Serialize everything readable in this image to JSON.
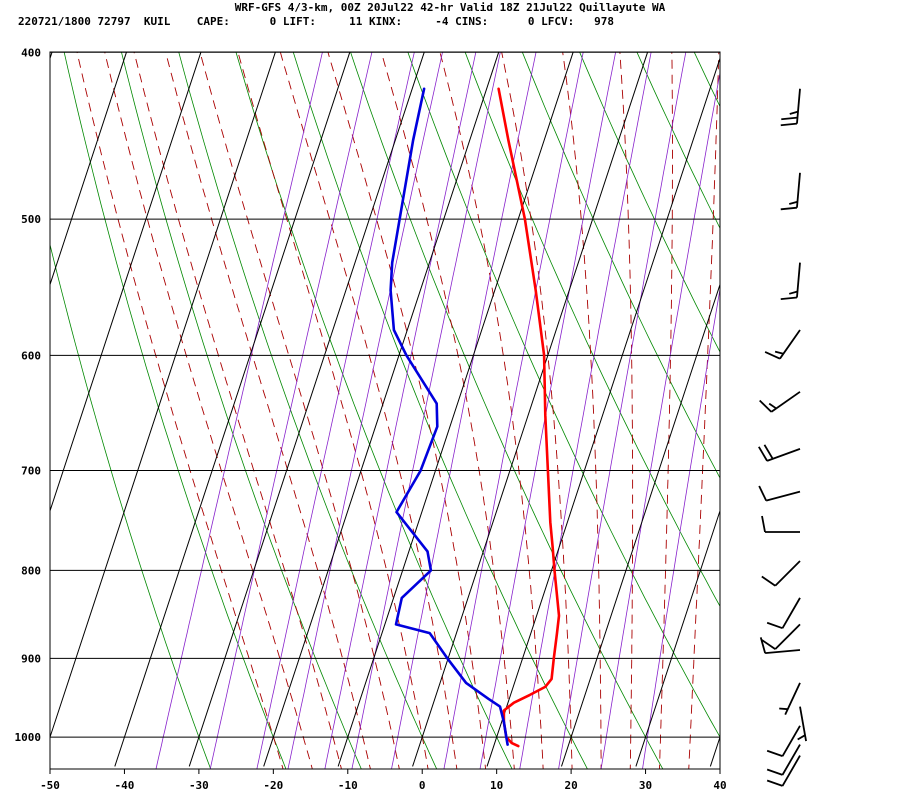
{
  "header": {
    "line1": "WRF-GFS 4/3-km, 00Z 20Jul22 42-hr Valid 18Z 21Jul22 Quillayute WA",
    "line2": "220721/1800 72797  KUIL    CAPE:      0 LIFT:     11 KINX:     -4 CINS:      0 LFCV:   978"
  },
  "chart_data": {
    "type": "skew-t",
    "x_axis": {
      "ticks": [
        -50,
        -40,
        -30,
        -20,
        -10,
        0,
        10,
        20,
        30,
        40
      ],
      "range": [
        -50,
        40
      ]
    },
    "y_axis": {
      "ticks": [
        400,
        500,
        600,
        700,
        800,
        900,
        1000
      ],
      "scale": "log",
      "range": [
        400,
        1040
      ]
    },
    "series": [
      {
        "role": "temperature",
        "color": "#ff0000",
        "points": [
          [
            1012,
            13.3
          ],
          [
            1008,
            12.3
          ],
          [
            1000,
            11.3
          ],
          [
            980,
            10.3
          ],
          [
            965,
            9.8
          ],
          [
            955,
            10.8
          ],
          [
            945,
            12.6
          ],
          [
            935,
            14.3
          ],
          [
            925,
            14.8
          ],
          [
            900,
            14.2
          ],
          [
            870,
            13.5
          ],
          [
            850,
            13.0
          ],
          [
            800,
            10.4
          ],
          [
            775,
            9.1
          ],
          [
            750,
            7.7
          ],
          [
            700,
            5.1
          ],
          [
            650,
            2.3
          ],
          [
            600,
            -0.5
          ],
          [
            550,
            -4.5
          ],
          [
            500,
            -9.1
          ],
          [
            450,
            -14.8
          ],
          [
            420,
            -18.4
          ]
        ]
      },
      {
        "role": "dewpoint",
        "color": "#0000dd",
        "points": [
          [
            1010,
            11.8
          ],
          [
            1000,
            11.3
          ],
          [
            980,
            10.3
          ],
          [
            960,
            9.1
          ],
          [
            950,
            7.2
          ],
          [
            930,
            3.5
          ],
          [
            900,
            -0.1
          ],
          [
            870,
            -3.6
          ],
          [
            860,
            -8.5
          ],
          [
            830,
            -8.9
          ],
          [
            800,
            -6.2
          ],
          [
            780,
            -7.5
          ],
          [
            740,
            -13.4
          ],
          [
            700,
            -12.0
          ],
          [
            660,
            -11.7
          ],
          [
            640,
            -12.8
          ],
          [
            600,
            -19.0
          ],
          [
            580,
            -21.8
          ],
          [
            550,
            -24.0
          ],
          [
            530,
            -25.0
          ],
          [
            450,
            -27.6
          ],
          [
            420,
            -28.4
          ]
        ]
      }
    ],
    "wind_barbs": [
      {
        "p": 420,
        "dir": 185,
        "kt": 25
      },
      {
        "p": 470,
        "dir": 185,
        "kt": 15
      },
      {
        "p": 530,
        "dir": 185,
        "kt": 15
      },
      {
        "p": 580,
        "dir": 215,
        "kt": 15
      },
      {
        "p": 630,
        "dir": 235,
        "kt": 15
      },
      {
        "p": 680,
        "dir": 250,
        "kt": 20
      },
      {
        "p": 720,
        "dir": 255,
        "kt": 10
      },
      {
        "p": 760,
        "dir": 270,
        "kt": 10
      },
      {
        "p": 790,
        "dir": 225,
        "kt": 10
      },
      {
        "p": 830,
        "dir": 210,
        "kt": 10
      },
      {
        "p": 860,
        "dir": 225,
        "kt": 10
      },
      {
        "p": 890,
        "dir": 265,
        "kt": 10
      },
      {
        "p": 930,
        "dir": 205,
        "kt": 5
      },
      {
        "p": 960,
        "dir": 170,
        "kt": 5
      },
      {
        "p": 985,
        "dir": 210,
        "kt": 10
      },
      {
        "p": 1010,
        "dir": 210,
        "kt": 10
      },
      {
        "p": 1025,
        "dir": 210,
        "kt": 10
      }
    ],
    "grid": true
  }
}
